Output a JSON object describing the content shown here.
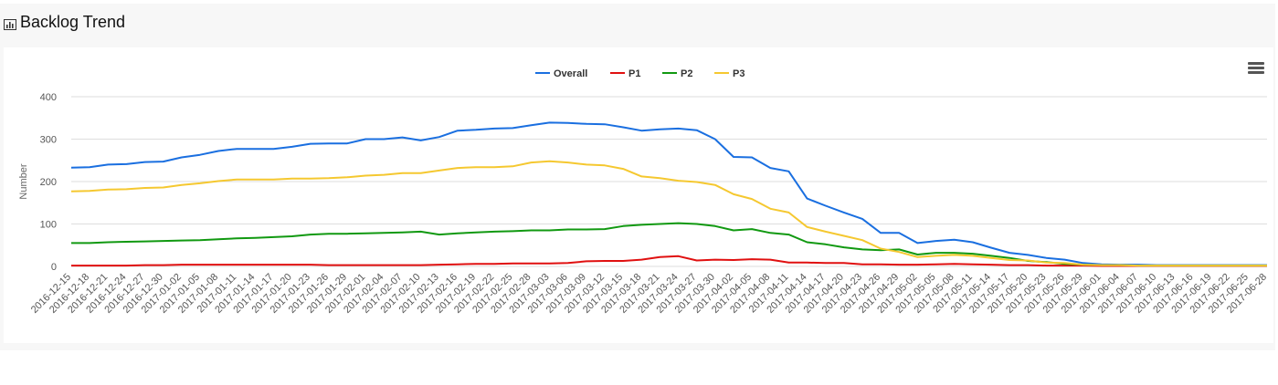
{
  "panel": {
    "title": "Backlog Trend",
    "icon": "bar-chart-icon",
    "menu_icon": "hamburger-menu-icon"
  },
  "chart_data": {
    "type": "line",
    "title": "",
    "xlabel": "",
    "ylabel": "Number",
    "ylim": [
      0,
      400
    ],
    "yticks": [
      0,
      100,
      200,
      300,
      400
    ],
    "grid": true,
    "legend_position": "top-center",
    "x_labels": [
      "2016-12-15",
      "2016-12-18",
      "2016-12-21",
      "2016-12-24",
      "2016-12-27",
      "2016-12-30",
      "2017-01-02",
      "2017-01-05",
      "2017-01-08",
      "2017-01-11",
      "2017-01-14",
      "2017-01-17",
      "2017-01-20",
      "2017-01-23",
      "2017-01-26",
      "2017-01-29",
      "2017-02-01",
      "2017-02-04",
      "2017-02-07",
      "2017-02-10",
      "2017-02-13",
      "2017-02-16",
      "2017-02-19",
      "2017-02-22",
      "2017-02-25",
      "2017-02-28",
      "2017-03-03",
      "2017-03-06",
      "2017-03-09",
      "2017-03-12",
      "2017-03-15",
      "2017-03-18",
      "2017-03-21",
      "2017-03-24",
      "2017-03-27",
      "2017-03-30",
      "2017-04-02",
      "2017-04-05",
      "2017-04-08",
      "2017-04-11",
      "2017-04-14",
      "2017-04-17",
      "2017-04-20",
      "2017-04-23",
      "2017-04-26",
      "2017-04-29",
      "2017-05-02",
      "2017-05-05",
      "2017-05-08",
      "2017-05-11",
      "2017-05-14",
      "2017-05-17",
      "2017-05-20",
      "2017-05-23",
      "2017-05-26",
      "2017-05-29",
      "2017-06-01",
      "2017-06-04",
      "2017-06-07",
      "2017-06-10",
      "2017-06-13",
      "2017-06-16",
      "2017-06-19",
      "2017-06-22",
      "2017-06-25",
      "2017-06-28"
    ],
    "series": [
      {
        "name": "Overall",
        "color": "#1a6fe0",
        "values": [
          233,
          234,
          240,
          241,
          246,
          247,
          257,
          263,
          272,
          277,
          277,
          277,
          282,
          289,
          290,
          290,
          300,
          300,
          304,
          297,
          305,
          320,
          322,
          325,
          326,
          333,
          339,
          338,
          336,
          335,
          328,
          320,
          323,
          325,
          321,
          300,
          258,
          257,
          232,
          224,
          160,
          143,
          127,
          112,
          79,
          79,
          55,
          60,
          63,
          57,
          44,
          32,
          27,
          20,
          16,
          8,
          5,
          4,
          4,
          3,
          3,
          3,
          3,
          3,
          3,
          3
        ]
      },
      {
        "name": "P1",
        "color": "#e01010",
        "values": [
          2,
          2,
          2,
          2,
          3,
          3,
          4,
          4,
          4,
          4,
          4,
          4,
          4,
          4,
          3,
          3,
          3,
          3,
          3,
          3,
          4,
          5,
          6,
          6,
          7,
          7,
          7,
          8,
          12,
          13,
          13,
          16,
          22,
          24,
          14,
          16,
          15,
          17,
          16,
          9,
          9,
          8,
          8,
          5,
          5,
          4,
          4,
          5,
          6,
          5,
          4,
          3,
          3,
          2,
          2,
          2,
          1,
          1,
          1,
          1,
          1,
          1,
          1,
          1,
          1,
          1
        ]
      },
      {
        "name": "P2",
        "color": "#119911",
        "values": [
          55,
          55,
          57,
          58,
          59,
          60,
          61,
          62,
          64,
          66,
          67,
          69,
          71,
          75,
          77,
          77,
          78,
          79,
          80,
          82,
          75,
          78,
          80,
          82,
          83,
          85,
          85,
          87,
          87,
          88,
          95,
          98,
          100,
          102,
          100,
          95,
          85,
          88,
          79,
          75,
          57,
          52,
          45,
          40,
          38,
          40,
          28,
          32,
          32,
          30,
          25,
          20,
          13,
          10,
          6,
          4,
          3,
          3,
          2,
          2,
          2,
          2,
          2,
          2,
          2,
          2
        ]
      },
      {
        "name": "P3",
        "color": "#f5c830",
        "values": [
          177,
          178,
          181,
          182,
          185,
          186,
          192,
          196,
          201,
          205,
          205,
          205,
          207,
          207,
          208,
          210,
          214,
          216,
          220,
          220,
          226,
          232,
          234,
          234,
          236,
          245,
          248,
          245,
          240,
          238,
          230,
          212,
          208,
          202,
          199,
          192,
          170,
          159,
          136,
          127,
          93,
          82,
          72,
          62,
          42,
          34,
          22,
          25,
          27,
          25,
          20,
          15,
          14,
          9,
          8,
          4,
          3,
          3,
          2,
          2,
          2,
          2,
          2,
          2,
          2,
          2
        ]
      }
    ]
  }
}
